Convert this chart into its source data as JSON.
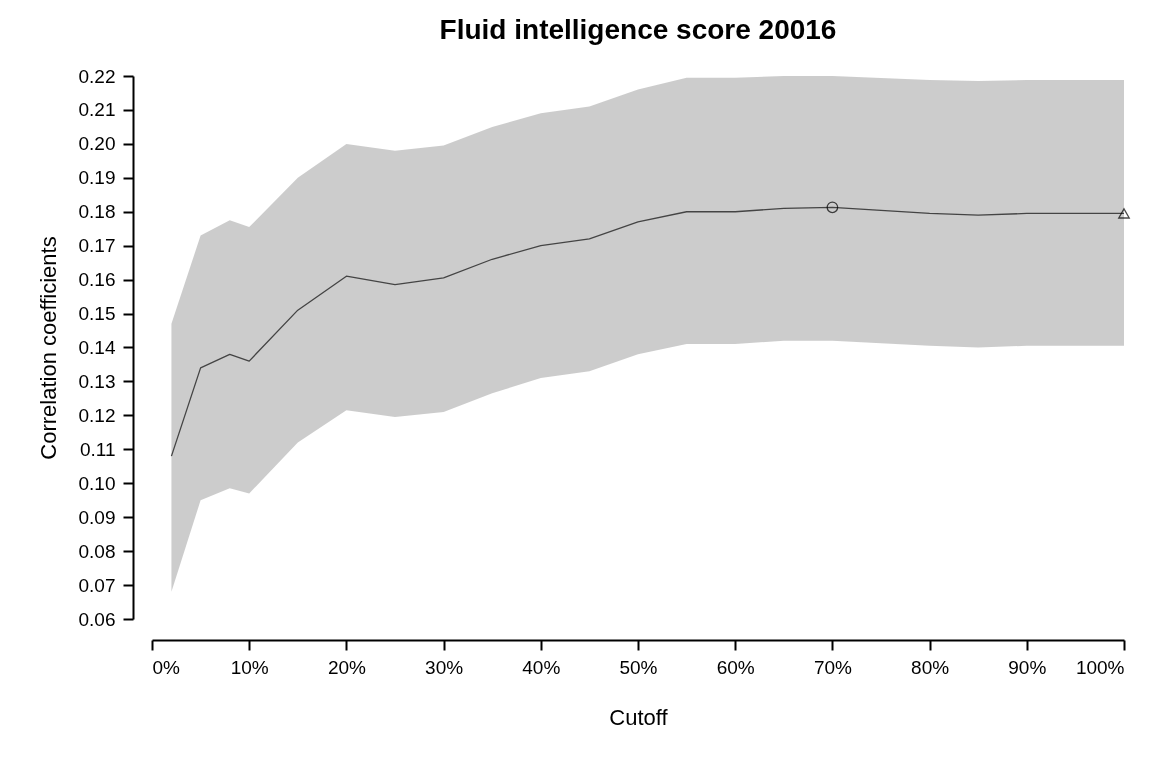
{
  "chart_data": {
    "type": "line",
    "title": "Fluid intelligence score 20016",
    "xlabel": "Cutoff",
    "ylabel": "Correlation coefficients",
    "xlim": [
      0,
      100
    ],
    "ylim": [
      0.06,
      0.22
    ],
    "xticks": [
      {
        "value": 0,
        "label": "0%"
      },
      {
        "value": 10,
        "label": "10%"
      },
      {
        "value": 20,
        "label": "20%"
      },
      {
        "value": 30,
        "label": "30%"
      },
      {
        "value": 40,
        "label": "40%"
      },
      {
        "value": 50,
        "label": "50%"
      },
      {
        "value": 60,
        "label": "60%"
      },
      {
        "value": 70,
        "label": "70%"
      },
      {
        "value": 80,
        "label": "80%"
      },
      {
        "value": 90,
        "label": "90%"
      },
      {
        "value": 100,
        "label": "100%"
      }
    ],
    "yticks": [
      {
        "value": 0.06,
        "label": "0.06"
      },
      {
        "value": 0.07,
        "label": "0.07"
      },
      {
        "value": 0.08,
        "label": "0.08"
      },
      {
        "value": 0.09,
        "label": "0.09"
      },
      {
        "value": 0.1,
        "label": "0.10"
      },
      {
        "value": 0.11,
        "label": "0.11"
      },
      {
        "value": 0.12,
        "label": "0.12"
      },
      {
        "value": 0.13,
        "label": "0.13"
      },
      {
        "value": 0.14,
        "label": "0.14"
      },
      {
        "value": 0.15,
        "label": "0.15"
      },
      {
        "value": 0.16,
        "label": "0.16"
      },
      {
        "value": 0.17,
        "label": "0.17"
      },
      {
        "value": 0.18,
        "label": "0.18"
      },
      {
        "value": 0.19,
        "label": "0.19"
      },
      {
        "value": 0.2,
        "label": "0.20"
      },
      {
        "value": 0.21,
        "label": "0.21"
      },
      {
        "value": 0.22,
        "label": "0.22"
      }
    ],
    "grid": false,
    "series": [
      {
        "color": "#444444",
        "marker": "none",
        "x": [
          2,
          5,
          8,
          10,
          15,
          20,
          25,
          30,
          35,
          40,
          45,
          50,
          55,
          60,
          65,
          70,
          80,
          85,
          90,
          100
        ],
        "values": [
          0.108,
          0.134,
          0.138,
          0.136,
          0.151,
          0.161,
          0.1585,
          0.1605,
          0.166,
          0.17,
          0.172,
          0.177,
          0.18,
          0.18,
          0.181,
          0.1813,
          0.1795,
          0.179,
          0.1795,
          0.1795
        ],
        "lower": [
          0.068,
          0.095,
          0.0985,
          0.097,
          0.112,
          0.1215,
          0.1195,
          0.121,
          0.1265,
          0.131,
          0.133,
          0.138,
          0.141,
          0.141,
          0.142,
          0.142,
          0.1405,
          0.14,
          0.1405,
          0.1405
        ],
        "upper": [
          0.147,
          0.173,
          0.1775,
          0.1755,
          0.19,
          0.2,
          0.198,
          0.1995,
          0.205,
          0.209,
          0.211,
          0.216,
          0.2195,
          0.2195,
          0.22,
          0.22,
          0.2188,
          0.2185,
          0.2188,
          0.2188
        ]
      },
      {
        "type": "scatter",
        "color": "#000000",
        "marker": "circle",
        "x": [
          70
        ],
        "values": [
          0.1813
        ]
      },
      {
        "type": "scatter",
        "color": "#000000",
        "marker": "triangle",
        "x": [
          100
        ],
        "values": [
          0.1795
        ]
      }
    ]
  }
}
